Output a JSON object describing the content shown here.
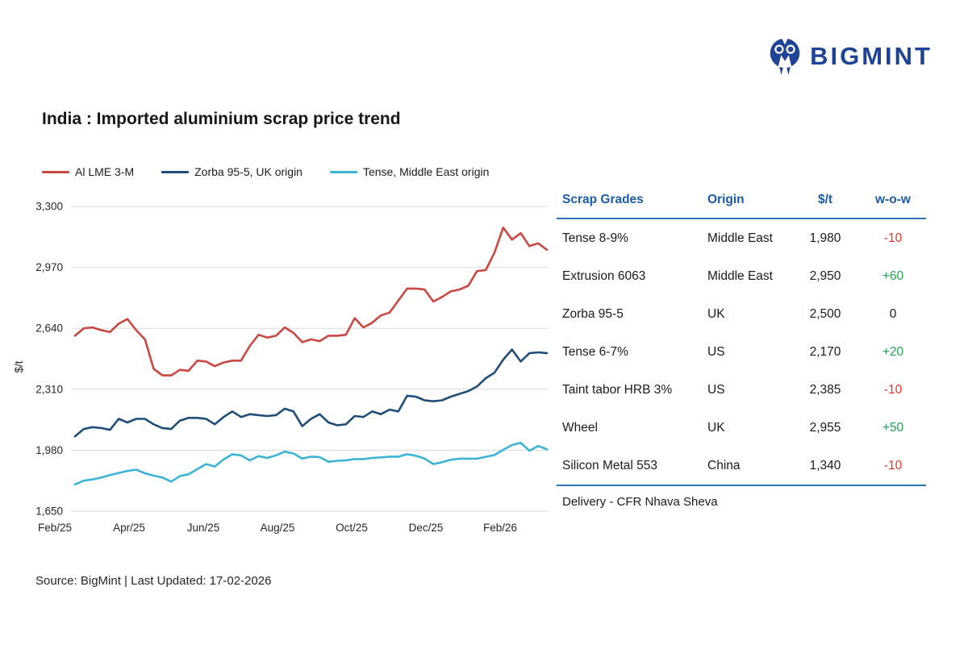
{
  "logo": {
    "text": "BIGMINT",
    "icon": "bigmint-owl-icon",
    "color": "#1F4396"
  },
  "page_title": "India : Imported aluminium scrap price trend",
  "chart_data": {
    "type": "line",
    "title": "India : Imported aluminium scrap price trend",
    "ylabel": "$/t",
    "ylim": [
      1650,
      3300
    ],
    "grid": "horizontal",
    "gridline_color": "#D9D9D9",
    "legend_position": "top",
    "y_ticks": [
      {
        "label": "3,300",
        "value": 3300
      },
      {
        "label": "2,970",
        "value": 2970
      },
      {
        "label": "2,640",
        "value": 2640
      },
      {
        "label": "2,310",
        "value": 2310
      },
      {
        "label": "1,980",
        "value": 1980
      },
      {
        "label": "1,650",
        "value": 1650
      }
    ],
    "x_ticks": [
      "Feb/25",
      "Apr/25",
      "Jun/25",
      "Aug/25",
      "Oct/25",
      "Dec/25",
      "Feb/26"
    ],
    "series": [
      {
        "name": "Al LME 3-M",
        "color": "#CB4742",
        "values": [
          2600,
          2640,
          2645,
          2630,
          2620,
          2665,
          2690,
          2630,
          2580,
          2420,
          2385,
          2385,
          2415,
          2410,
          2465,
          2460,
          2435,
          2455,
          2465,
          2465,
          2545,
          2605,
          2590,
          2600,
          2645,
          2615,
          2565,
          2580,
          2570,
          2600,
          2600,
          2605,
          2695,
          2645,
          2670,
          2710,
          2725,
          2790,
          2855,
          2855,
          2850,
          2785,
          2810,
          2840,
          2850,
          2870,
          2950,
          2955,
          3050,
          3185,
          3120,
          3155,
          3085,
          3100,
          3065
        ]
      },
      {
        "name": "Zorba 95-5, UK origin",
        "color": "#1F4E79",
        "values": [
          2055,
          2095,
          2105,
          2100,
          2090,
          2150,
          2130,
          2150,
          2150,
          2120,
          2100,
          2095,
          2140,
          2155,
          2155,
          2150,
          2120,
          2160,
          2190,
          2160,
          2175,
          2170,
          2165,
          2170,
          2205,
          2190,
          2110,
          2150,
          2175,
          2130,
          2115,
          2120,
          2165,
          2160,
          2190,
          2175,
          2200,
          2190,
          2275,
          2270,
          2250,
          2245,
          2250,
          2270,
          2285,
          2300,
          2325,
          2370,
          2400,
          2470,
          2525,
          2460,
          2505,
          2510,
          2505
        ]
      },
      {
        "name": "Tense, Middle East origin",
        "color": "#3DB4D6",
        "values": [
          1795,
          1815,
          1822,
          1832,
          1845,
          1857,
          1868,
          1875,
          1855,
          1842,
          1832,
          1810,
          1840,
          1850,
          1878,
          1905,
          1892,
          1930,
          1958,
          1952,
          1925,
          1948,
          1938,
          1952,
          1972,
          1962,
          1935,
          1945,
          1943,
          1917,
          1923,
          1925,
          1932,
          1932,
          1938,
          1941,
          1945,
          1945,
          1958,
          1950,
          1935,
          1905,
          1915,
          1928,
          1934,
          1934,
          1934,
          1944,
          1954,
          1982,
          2008,
          2020,
          1977,
          2003,
          1985
        ]
      }
    ]
  },
  "table": {
    "columns": [
      "Scrap Grades",
      "Origin",
      "$/t",
      "w-o-w"
    ],
    "rows": [
      {
        "grade": "Tense 8-9%",
        "origin": "Middle East",
        "price": "1,980",
        "wow": "-10"
      },
      {
        "grade": "Extrusion 6063",
        "origin": "Middle East",
        "price": "2,950",
        "wow": "+60"
      },
      {
        "grade": "Zorba 95-5",
        "origin": "UK",
        "price": "2,500",
        "wow": "0"
      },
      {
        "grade": "Tense 6-7%",
        "origin": "US",
        "price": "2,170",
        "wow": "+20"
      },
      {
        "grade": "Taint tabor HRB 3%",
        "origin": "US",
        "price": "2,385",
        "wow": "-10"
      },
      {
        "grade": "Wheel",
        "origin": "UK",
        "price": "2,955",
        "wow": "+50"
      },
      {
        "grade": "Silicon Metal 553",
        "origin": "China",
        "price": "1,340",
        "wow": "-10"
      }
    ],
    "note": "Delivery - CFR Nhava Sheva",
    "colors": {
      "header": "#1B5BA8",
      "rule": "#2E75B6",
      "up": "#23A455",
      "down": "#E0362C",
      "flat": "#1b1b1b"
    }
  },
  "footer": {
    "source": "Source: BigMint | Last Updated: 17-02-2026"
  }
}
